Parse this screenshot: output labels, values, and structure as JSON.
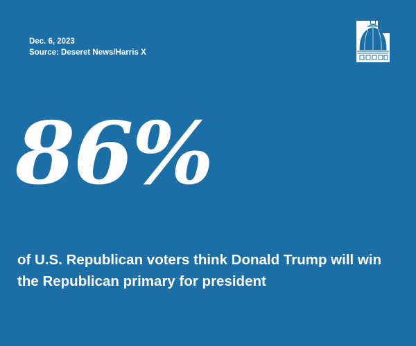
{
  "date": "Dec. 6, 2023",
  "source": "Source: Deseret News/Harris X",
  "logo": {
    "name": "capitol-dome-logo",
    "color": "#ffffff"
  },
  "statistic": "86%",
  "caption": "of U.S. Republican voters think Donald Trump will win the Republican primary for president",
  "colors": {
    "background": "#1c6fa6",
    "text": "#ffffff"
  }
}
